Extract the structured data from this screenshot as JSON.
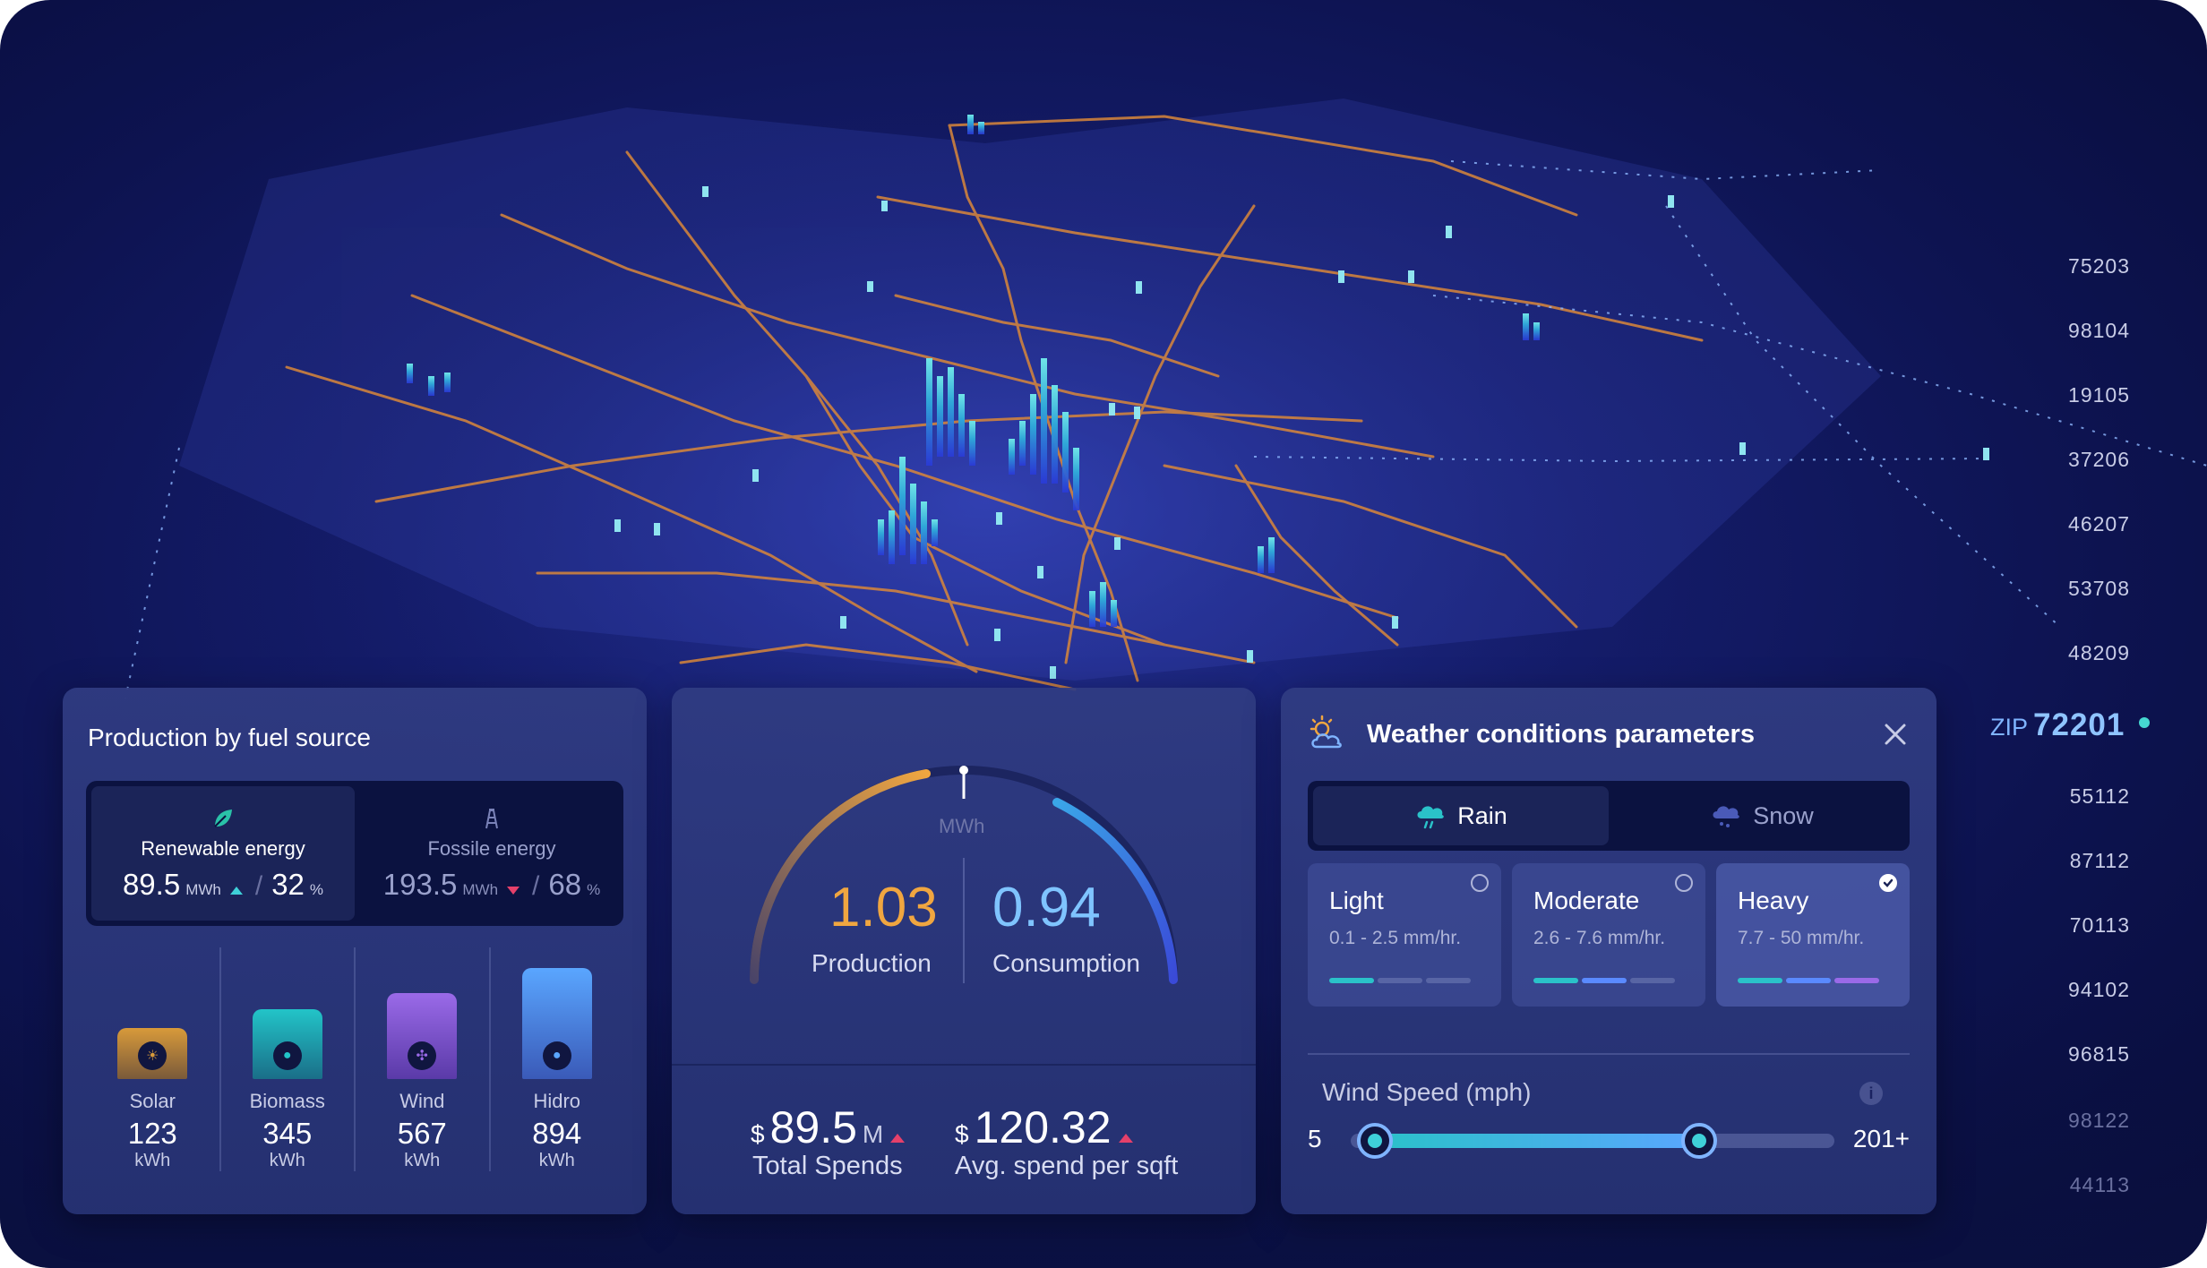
{
  "zip_list": {
    "label": "ZIP",
    "active": "72201",
    "above": [
      "75203",
      "98104",
      "19105",
      "37206",
      "46207",
      "53708",
      "48209"
    ],
    "below": [
      "55112",
      "87112",
      "70113",
      "94102",
      "96815",
      "98122",
      "44113"
    ]
  },
  "fuel_panel": {
    "title": "Production by fuel source",
    "renewable": {
      "label": "Renewable energy",
      "value": "89.5",
      "unit": "MWh",
      "percent": "32",
      "percent_unit": "%"
    },
    "fossil": {
      "label": "Fossile energy",
      "value": "193.5",
      "unit": "MWh",
      "percent": "68",
      "percent_unit": "%"
    },
    "sources": [
      {
        "name": "Solar",
        "value": "123",
        "unit": "kWh",
        "level": 0.12,
        "icon": "sun-icon",
        "color_top": "#d89a3a",
        "color_bottom": "#7a5a3a"
      },
      {
        "name": "Biomass",
        "value": "345",
        "unit": "kWh",
        "level": 0.39,
        "icon": "biomass-icon",
        "color_top": "#22c4c8",
        "color_bottom": "#1a6e88"
      },
      {
        "name": "Wind",
        "value": "567",
        "unit": "kWh",
        "level": 0.63,
        "icon": "wind-icon",
        "color_top": "#9a6ae8",
        "color_bottom": "#5a3aa8"
      },
      {
        "name": "Hidro",
        "value": "894",
        "unit": "kWh",
        "level": 1.0,
        "icon": "water-drop-icon",
        "color_top": "#5aa6ff",
        "color_bottom": "#3a5ab8"
      }
    ]
  },
  "gauge_panel": {
    "unit": "MWh",
    "production": {
      "value": "1.03",
      "label": "Production"
    },
    "consumption": {
      "value": "0.94",
      "label": "Consumption"
    },
    "total_spends": {
      "currency": "$",
      "value": "89.5",
      "suffix": "M",
      "label": "Total Spends"
    },
    "avg_spend": {
      "currency": "$",
      "value": "120.32",
      "label": "Avg. spend per sqft"
    }
  },
  "weather_panel": {
    "title": "Weather conditions parameters",
    "tabs": [
      {
        "label": "Rain",
        "active": true
      },
      {
        "label": "Snow",
        "active": false
      }
    ],
    "levels": [
      {
        "name": "Light",
        "range": "0.1 - 2.5 mm/hr.",
        "selected": false,
        "filled": 1,
        "colors": [
          "#2ac2c9"
        ]
      },
      {
        "name": "Moderate",
        "range": "2.6 - 7.6 mm/hr.",
        "selected": false,
        "filled": 2,
        "colors": [
          "#2ac2c9",
          "#5a8aff"
        ]
      },
      {
        "name": "Heavy",
        "range": "7.7 - 50 mm/hr.",
        "selected": true,
        "filled": 3,
        "colors": [
          "#2ac2c9",
          "#5a8aff",
          "#9a6ae8"
        ]
      }
    ],
    "wind_speed": {
      "label": "Wind Speed (mph)",
      "min_label": "5",
      "max_label": "201+",
      "low": 0.05,
      "high": 0.72
    }
  }
}
